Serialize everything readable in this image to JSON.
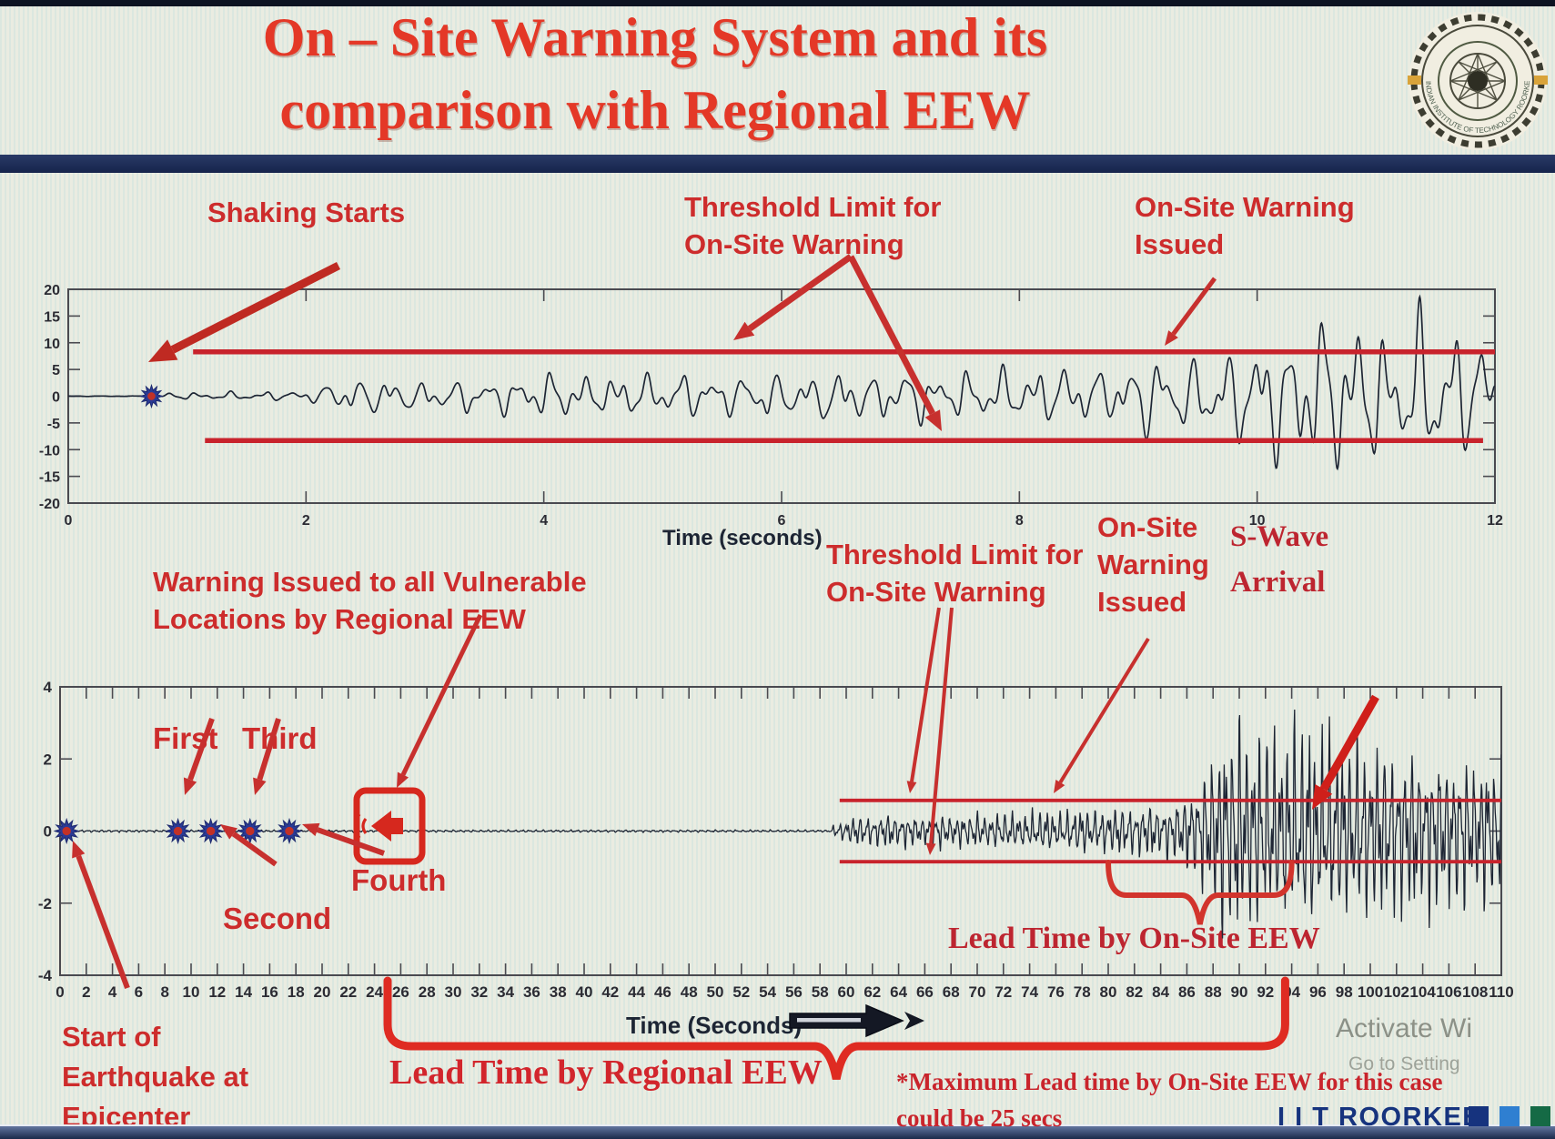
{
  "colors": {
    "title_red": "#e43827",
    "annotation_red": "#cd2c2c",
    "threshold_red": "#c8232c",
    "arrow_red": "#c7302e",
    "wave_navy": "#1d2534",
    "axis_dark": "#2e2e36",
    "divider_navy": "#16244c",
    "brand_navy": "#16337e",
    "brand_blue": "#2f7fd1",
    "brand_green": "#156a45",
    "watermark_gray": "#8f948b"
  },
  "header": {
    "title_line1": "On – Site Warning System and its",
    "title_line2": "comparison with Regional EEW",
    "logo_text": "INDIAN INSTITUTE OF TECHNOLOGY ROORKEE"
  },
  "top_chart": {
    "xlabel": "Time (seconds)",
    "annotations": {
      "shaking_starts": "Shaking Starts",
      "threshold_l1": "Threshold Limit for",
      "threshold_l2": "On-Site Warning",
      "issued_l1": "On-Site Warning",
      "issued_l2": "Issued"
    }
  },
  "bottom_chart": {
    "xlabel": "Time (Seconds)",
    "annotations": {
      "regional_l1": "Warning Issued to all Vulnerable",
      "regional_l2": "Locations by Regional EEW",
      "first": "First",
      "second": "Second",
      "third": "Third",
      "fourth": "Fourth",
      "threshold_l1": "Threshold Limit for",
      "threshold_l2": "On-Site Warning",
      "issued_l1": "On-Site",
      "issued_l2": "Warning",
      "issued_l3": "Issued",
      "swave_l1": "S-Wave",
      "swave_l2": "Arrival",
      "lead_onsite": "Lead Time by On-Site EEW",
      "lead_regional": "Lead Time by Regional EEW",
      "start_l1": "Start of",
      "start_l2": "Earthquake at",
      "start_l3": "Epicenter"
    }
  },
  "footer": {
    "footnote_l1": "*Maximum Lead time by On-Site EEW for this case",
    "footnote_l2": "could be 25 secs",
    "brand": "I I T ROORKEE",
    "watermark_l1": "Activate Wi",
    "watermark_l2": "Go to Setting"
  },
  "chart_data": [
    {
      "type": "line",
      "subtype": "seismogram",
      "name": "onsite-station-acceleration-record",
      "xlabel": "Time (seconds)",
      "xlim": [
        0,
        12
      ],
      "xticks": [
        0,
        2,
        4,
        6,
        8,
        10,
        12
      ],
      "ylim": [
        -20,
        20
      ],
      "yticks": [
        20,
        15,
        10,
        5,
        0,
        -5,
        -10,
        -15,
        -20
      ],
      "grid": false,
      "threshold_lines": [
        {
          "v": 8.3,
          "t0": 1.05,
          "t1": 12
        },
        {
          "v": -8.3,
          "t0": 1.15,
          "t1": 11.9
        }
      ],
      "markers": [
        {
          "label": "shaking-starts",
          "t": 0.7,
          "v": 0
        }
      ],
      "warning_crossing_t": 9.2,
      "osc_freqs": [
        3.7,
        6.3,
        9.4
      ],
      "envelope": [
        [
          0,
          0.05
        ],
        [
          0.68,
          0.05
        ],
        [
          0.7,
          0.8
        ],
        [
          1.0,
          0.6
        ],
        [
          1.4,
          0.75
        ],
        [
          1.8,
          0.9
        ],
        [
          2.05,
          1.2
        ],
        [
          2.3,
          3.2
        ],
        [
          2.6,
          3.8
        ],
        [
          2.9,
          2.6
        ],
        [
          3.2,
          3.4
        ],
        [
          3.5,
          2.8
        ],
        [
          3.8,
          3.6
        ],
        [
          4.1,
          4.4
        ],
        [
          4.4,
          3.2
        ],
        [
          4.7,
          4.2
        ],
        [
          5.0,
          3.4
        ],
        [
          5.3,
          4.6
        ],
        [
          5.6,
          3.6
        ],
        [
          5.9,
          4.8
        ],
        [
          6.2,
          4.0
        ],
        [
          6.5,
          5.2
        ],
        [
          6.8,
          4.2
        ],
        [
          7.1,
          4.8
        ],
        [
          7.4,
          3.8
        ],
        [
          7.7,
          5.0
        ],
        [
          8.0,
          4.4
        ],
        [
          8.3,
          5.6
        ],
        [
          8.6,
          4.6
        ],
        [
          8.9,
          6.2
        ],
        [
          9.1,
          8.6
        ],
        [
          9.3,
          6.0
        ],
        [
          9.5,
          8.0
        ],
        [
          9.7,
          10.5
        ],
        [
          9.9,
          8.0
        ],
        [
          10.1,
          14.0
        ],
        [
          10.3,
          10.0
        ],
        [
          10.5,
          16.5
        ],
        [
          10.7,
          12.0
        ],
        [
          10.9,
          15.0
        ],
        [
          11.1,
          9.5
        ],
        [
          11.3,
          13.5
        ],
        [
          11.5,
          15.5
        ],
        [
          11.7,
          11.0
        ],
        [
          11.9,
          13.0
        ],
        [
          12,
          10.0
        ]
      ]
    },
    {
      "type": "line",
      "subtype": "seismogram",
      "name": "regional-vs-onsite-timeline",
      "xlabel": "Time (Seconds)",
      "xlim": [
        0,
        110
      ],
      "xtick_step": 2,
      "ylim": [
        -4,
        4
      ],
      "yticks": [
        4,
        2,
        0,
        -2,
        -4
      ],
      "grid": false,
      "threshold_lines": [
        {
          "v": 0.85,
          "t0": 59.5,
          "t1": 110
        },
        {
          "v": -0.85,
          "t0": 59.5,
          "t1": 110
        }
      ],
      "markers": [
        {
          "label": "epicenter",
          "t": 0.5,
          "v": 0
        },
        {
          "label": "first-warning",
          "t": 9,
          "v": 0
        },
        {
          "label": "second-warning",
          "t": 11.5,
          "v": 0
        },
        {
          "label": "third-warning",
          "t": 14.5,
          "v": 0
        },
        {
          "label": "fourth-warning",
          "t": 17.5,
          "v": 0
        }
      ],
      "regional_warning_icon_t": 24,
      "p_wave_onset_t": 59,
      "s_wave_arrival_t": 94,
      "lead_time_regional_span": [
        25,
        93.5
      ],
      "lead_time_onsite_span": [
        80,
        94
      ],
      "max_lead_time_onsite_secs": 25,
      "osc_freqs": [
        1.9,
        3.35,
        5.2
      ],
      "envelope": [
        [
          0,
          0.03
        ],
        [
          58.8,
          0.03
        ],
        [
          59,
          0.15
        ],
        [
          60,
          0.3
        ],
        [
          61,
          0.45
        ],
        [
          62,
          0.35
        ],
        [
          63,
          0.5
        ],
        [
          64,
          0.4
        ],
        [
          65,
          0.45
        ],
        [
          66,
          0.35
        ],
        [
          67,
          0.5
        ],
        [
          68,
          0.4
        ],
        [
          69,
          0.45
        ],
        [
          70,
          0.5
        ],
        [
          71,
          0.4
        ],
        [
          72,
          0.55
        ],
        [
          73,
          0.45
        ],
        [
          74,
          0.5
        ],
        [
          75,
          0.6
        ],
        [
          76,
          0.5
        ],
        [
          77,
          0.55
        ],
        [
          78,
          0.65
        ],
        [
          79,
          0.55
        ],
        [
          80,
          0.6
        ],
        [
          81,
          0.7
        ],
        [
          82,
          0.6
        ],
        [
          83,
          0.75
        ],
        [
          84,
          0.65
        ],
        [
          85,
          0.8
        ],
        [
          86,
          1.0
        ],
        [
          87,
          1.4
        ],
        [
          88,
          2.2
        ],
        [
          89,
          2.9
        ],
        [
          90,
          3.1
        ],
        [
          91,
          2.5
        ],
        [
          92,
          2.9
        ],
        [
          93,
          2.4
        ],
        [
          94,
          2.8
        ],
        [
          95,
          3.0
        ],
        [
          96,
          2.5
        ],
        [
          97,
          2.8
        ],
        [
          98,
          2.3
        ],
        [
          99,
          2.6
        ],
        [
          100,
          2.2
        ],
        [
          101,
          2.5
        ],
        [
          102,
          2.1
        ],
        [
          103,
          2.4
        ],
        [
          104,
          2.0
        ],
        [
          105,
          2.3
        ],
        [
          106,
          1.9
        ],
        [
          107,
          2.2
        ],
        [
          108,
          1.8
        ],
        [
          109,
          2.1
        ],
        [
          110,
          1.9
        ]
      ]
    }
  ]
}
